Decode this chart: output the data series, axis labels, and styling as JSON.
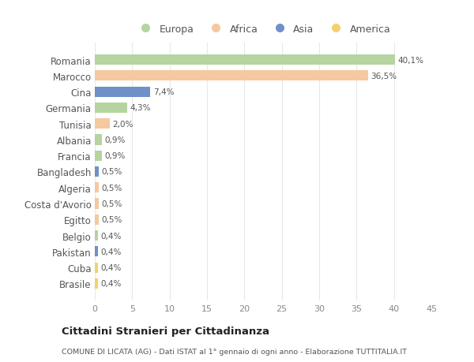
{
  "countries": [
    "Romania",
    "Marocco",
    "Cina",
    "Germania",
    "Tunisia",
    "Albania",
    "Francia",
    "Bangladesh",
    "Algeria",
    "Costa d'Avorio",
    "Egitto",
    "Belgio",
    "Pakistan",
    "Cuba",
    "Brasile"
  ],
  "values": [
    40.1,
    36.5,
    7.4,
    4.3,
    2.0,
    0.9,
    0.9,
    0.5,
    0.5,
    0.5,
    0.5,
    0.4,
    0.4,
    0.4,
    0.4
  ],
  "labels": [
    "40,1%",
    "36,5%",
    "7,4%",
    "4,3%",
    "2,0%",
    "0,9%",
    "0,9%",
    "0,5%",
    "0,5%",
    "0,5%",
    "0,5%",
    "0,4%",
    "0,4%",
    "0,4%",
    "0,4%"
  ],
  "continents": [
    "Europa",
    "Africa",
    "Asia",
    "Europa",
    "Africa",
    "Europa",
    "Europa",
    "Asia",
    "Africa",
    "Africa",
    "Africa",
    "Europa",
    "Asia",
    "America",
    "America"
  ],
  "legend_labels": [
    "Europa",
    "Africa",
    "Asia",
    "America"
  ],
  "legend_colors": [
    "#b5d4a0",
    "#f5c8a0",
    "#7090c8",
    "#f5d070"
  ],
  "xlim": [
    0,
    45
  ],
  "xticks": [
    0,
    5,
    10,
    15,
    20,
    25,
    30,
    35,
    40,
    45
  ],
  "title": "Cittadini Stranieri per Cittadinanza",
  "subtitle": "COMUNE DI LICATA (AG) - Dati ISTAT al 1° gennaio di ogni anno - Elaborazione TUTTITALIA.IT",
  "bg_color": "#ffffff",
  "plot_bg_color": "#ffffff",
  "grid_color": "#e8e8e8",
  "bar_height": 0.65
}
